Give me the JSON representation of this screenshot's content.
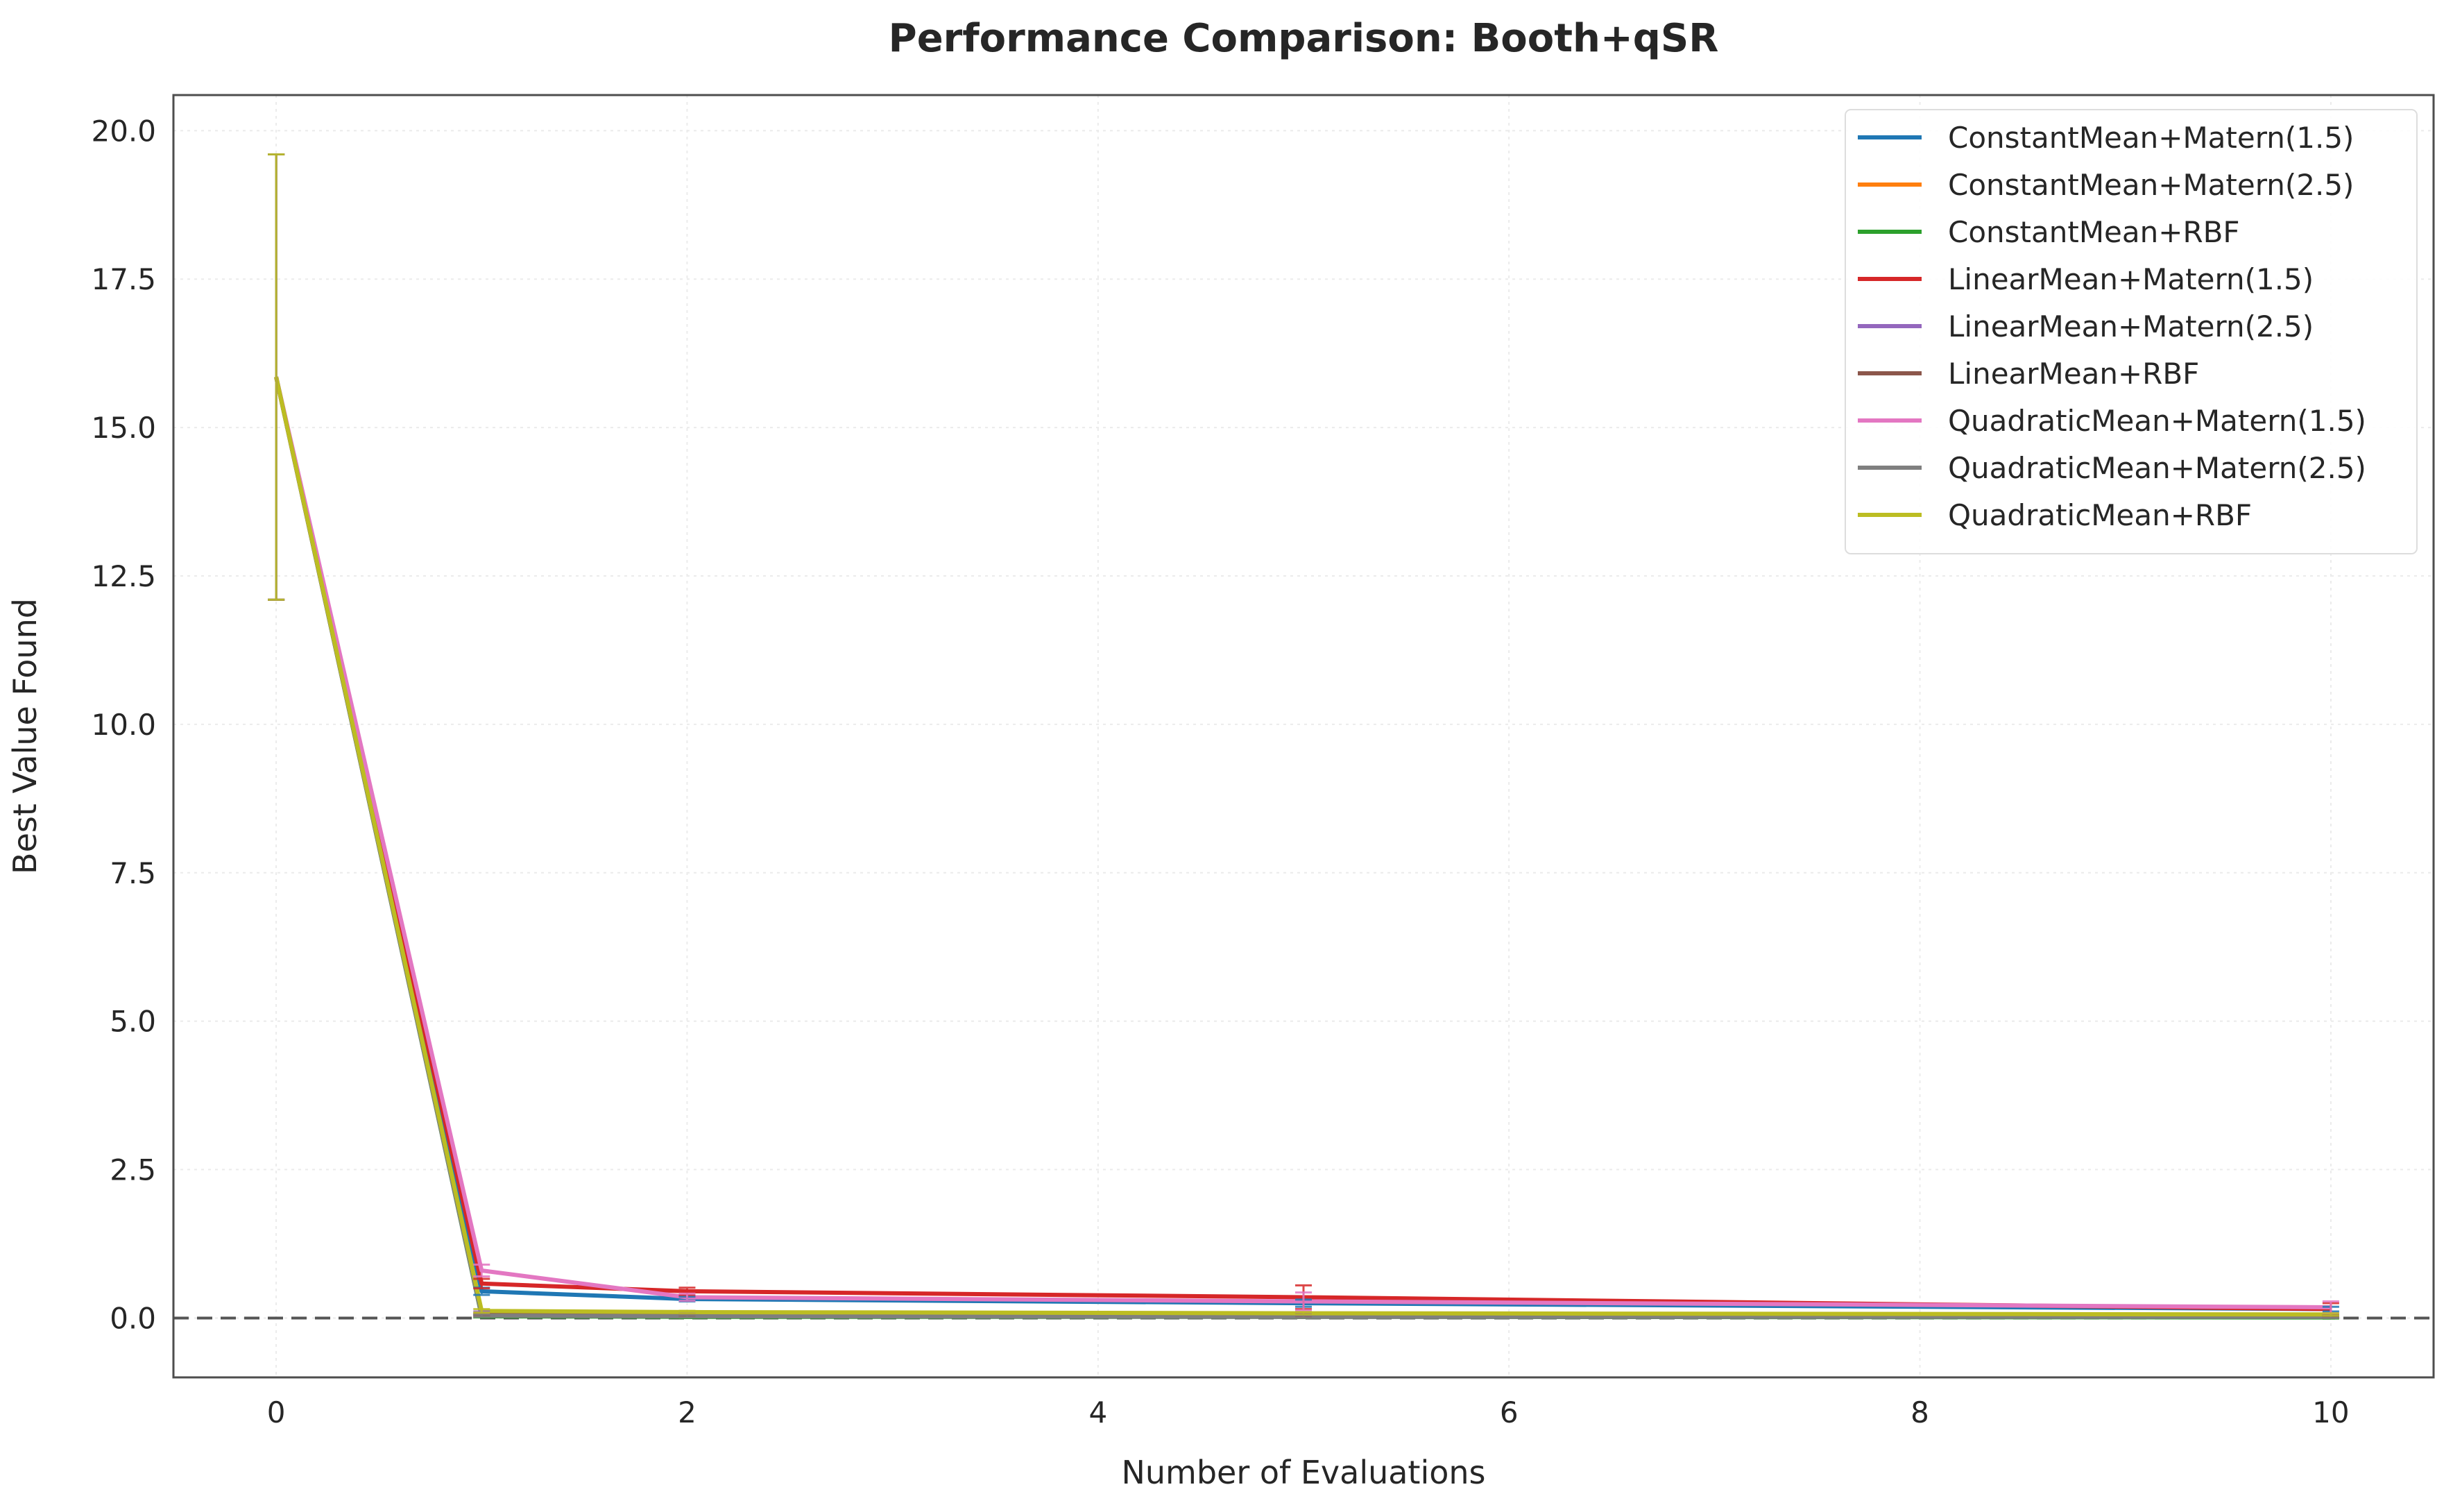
{
  "chart_data": {
    "type": "line",
    "title": "Performance Comparison: Booth+qSR",
    "xlabel": "Number of Evaluations",
    "ylabel": "Best Value Found",
    "xlim": [
      -0.5,
      10.5
    ],
    "ylim": [
      -1.0,
      20.6
    ],
    "xticks": [
      0,
      2,
      4,
      6,
      8,
      10
    ],
    "xtick_labels": [
      "0",
      "2",
      "4",
      "6",
      "8",
      "10"
    ],
    "yticks": [
      0,
      2.5,
      5,
      7.5,
      10,
      12.5,
      15,
      17.5,
      20
    ],
    "ytick_labels": [
      "0.0",
      "2.5",
      "5.0",
      "7.5",
      "10.0",
      "12.5",
      "15.0",
      "17.5",
      "20.0"
    ],
    "grid": true,
    "legend_position": "top-right",
    "reference_line": {
      "y": 0,
      "style": "dashed",
      "color": "#555555"
    },
    "x": [
      0,
      1,
      2,
      5,
      10
    ],
    "series": [
      {
        "name": "ConstantMean+Matern(1.5)",
        "color": "#1f77b4",
        "values": [
          15.85,
          0.45,
          0.32,
          0.25,
          0.15
        ],
        "errors": [
          3.75,
          0.06,
          0.04,
          0.06,
          0.04
        ]
      },
      {
        "name": "ConstantMean+Matern(2.5)",
        "color": "#ff7f0e",
        "values": [
          15.85,
          0.05,
          0.04,
          0.03,
          0.02
        ],
        "errors": [
          3.75,
          0.02,
          0.02,
          0.02,
          0.02
        ]
      },
      {
        "name": "ConstantMean+RBF",
        "color": "#2ca02c",
        "values": [
          15.85,
          0.03,
          0.02,
          0.02,
          0.01
        ],
        "errors": [
          3.75,
          0.02,
          0.02,
          0.02,
          0.02
        ]
      },
      {
        "name": "LinearMean+Matern(1.5)",
        "color": "#d62728",
        "values": [
          15.85,
          0.58,
          0.45,
          0.35,
          0.15
        ],
        "errors": [
          3.75,
          0.08,
          0.06,
          0.2,
          0.1
        ]
      },
      {
        "name": "LinearMean+Matern(2.5)",
        "color": "#9467bd",
        "values": [
          15.85,
          0.08,
          0.06,
          0.05,
          0.04
        ],
        "errors": [
          3.75,
          0.03,
          0.02,
          0.02,
          0.02
        ]
      },
      {
        "name": "LinearMean+RBF",
        "color": "#8c564b",
        "values": [
          15.85,
          0.06,
          0.05,
          0.04,
          0.03
        ],
        "errors": [
          3.75,
          0.02,
          0.02,
          0.02,
          0.02
        ]
      },
      {
        "name": "QuadraticMean+Matern(1.5)",
        "color": "#e377c2",
        "values": [
          15.85,
          0.8,
          0.35,
          0.28,
          0.18
        ],
        "errors": [
          3.75,
          0.1,
          0.06,
          0.15,
          0.1
        ]
      },
      {
        "name": "QuadraticMean+Matern(2.5)",
        "color": "#7f7f7f",
        "values": [
          15.85,
          0.04,
          0.03,
          0.02,
          0.02
        ],
        "errors": [
          3.75,
          0.02,
          0.02,
          0.02,
          0.02
        ]
      },
      {
        "name": "QuadraticMean+RBF",
        "color": "#bcbd22",
        "values": [
          15.85,
          0.12,
          0.1,
          0.08,
          0.06
        ],
        "errors": [
          3.75,
          0.03,
          0.02,
          0.02,
          0.02
        ]
      }
    ]
  }
}
